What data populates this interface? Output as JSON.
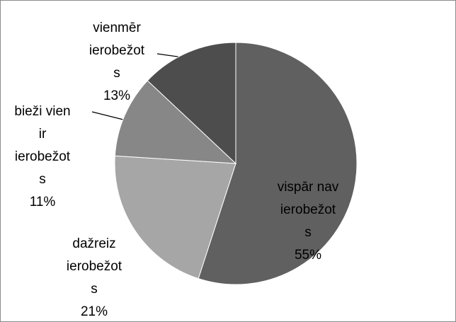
{
  "chart_data": {
    "type": "pie",
    "categories": [
      [
        "vispār nav",
        "ierobežot",
        "s"
      ],
      [
        "dažreiz",
        "ierobežot",
        "s"
      ],
      [
        "bieži vien",
        "ir",
        "ierobežot",
        "s"
      ],
      [
        "vienmēr",
        "ierobežot",
        "s"
      ]
    ],
    "values": [
      55,
      21,
      11,
      13
    ],
    "value_labels": [
      "55%",
      "21%",
      "11%",
      "13%"
    ],
    "colors": [
      "#606060",
      "#a6a6a6",
      "#878787",
      "#4d4d4d"
    ]
  }
}
